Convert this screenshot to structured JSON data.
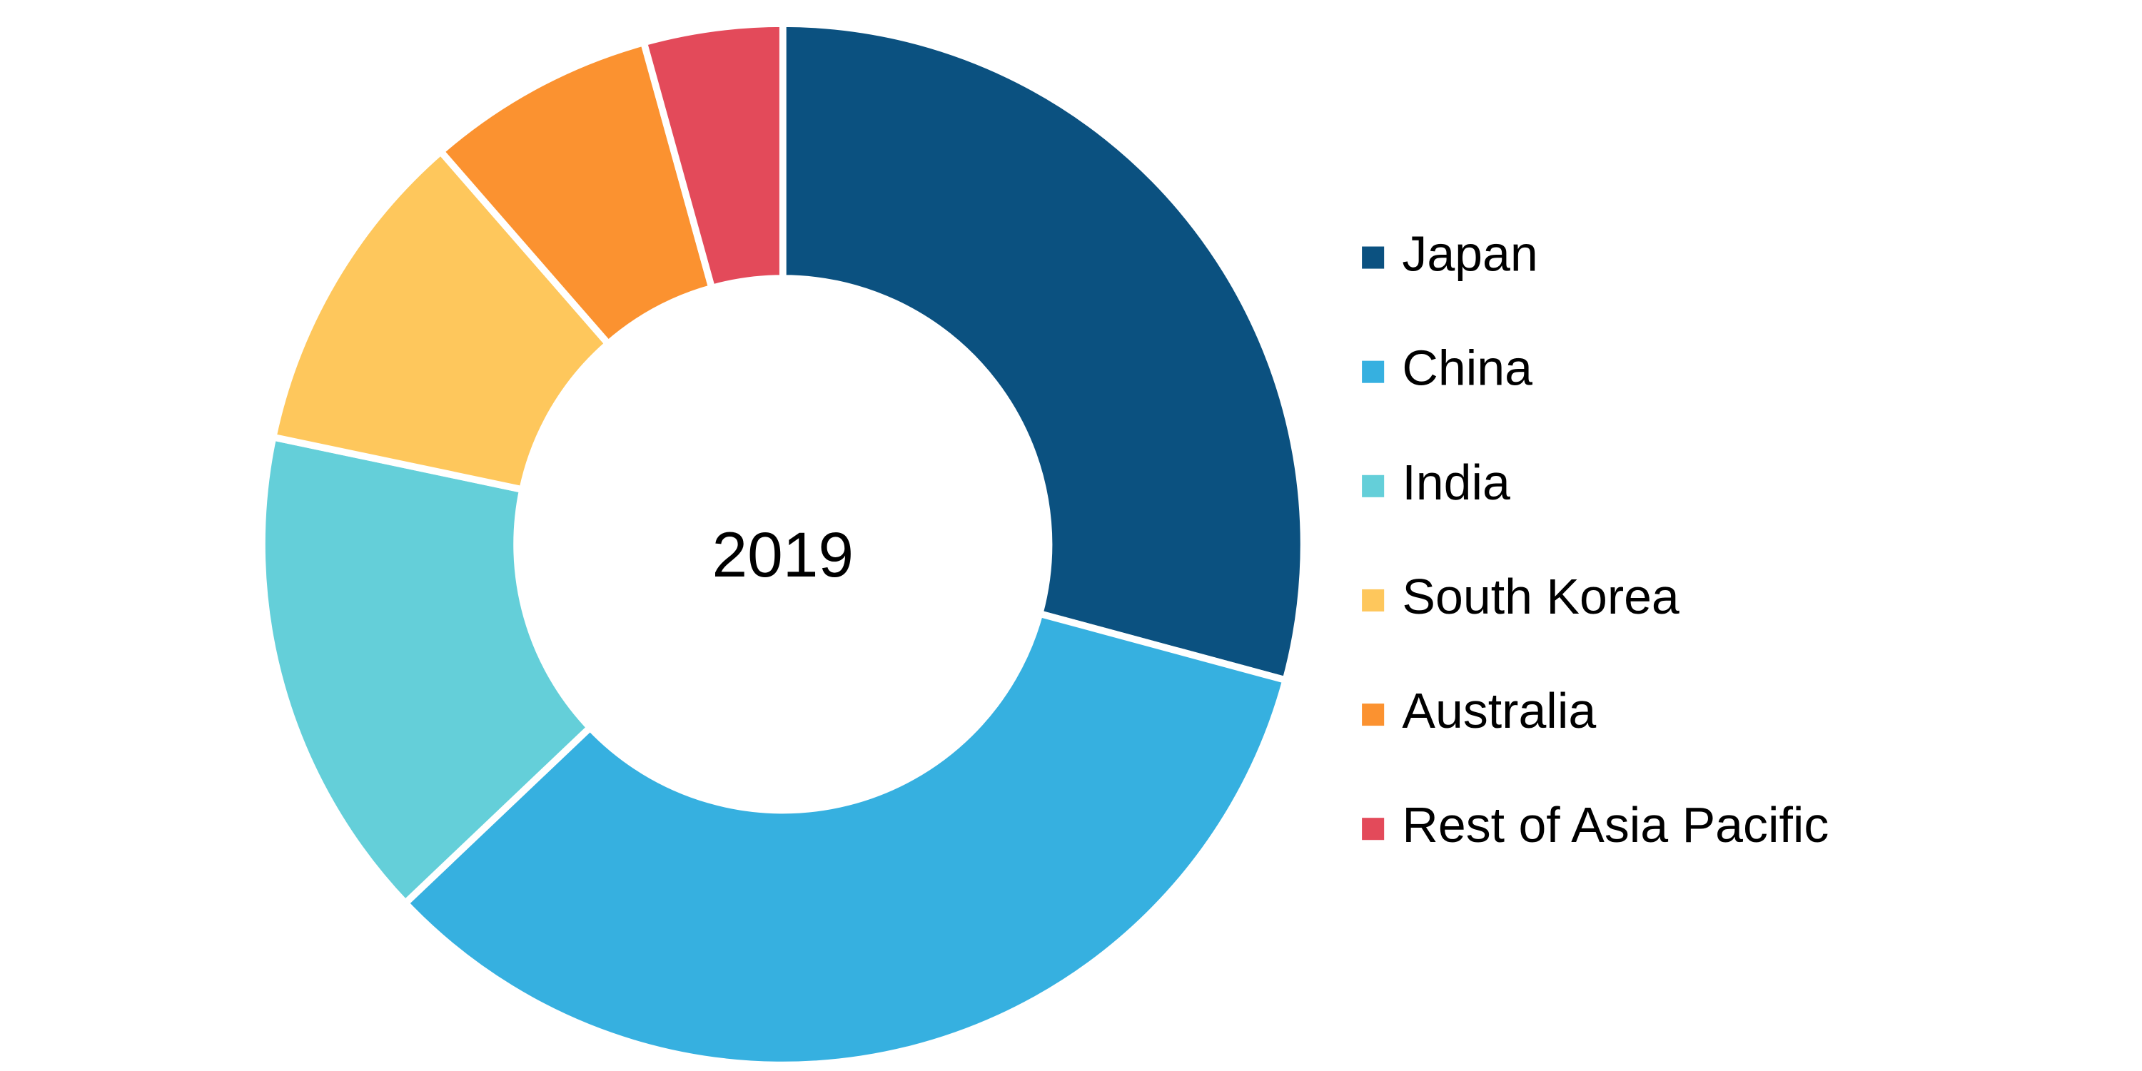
{
  "chart_data": {
    "type": "donut",
    "center_label": "2019",
    "categories": [
      "Japan",
      "China",
      "India",
      "South Korea",
      "Australia",
      "Rest of Asia Pacific"
    ],
    "values": [
      29.2,
      33.7,
      15.4,
      10.3,
      7.1,
      4.3
    ],
    "colors": [
      "#0b5180",
      "#36b0e0",
      "#64cfd9",
      "#fec75c",
      "#fb9230",
      "#e34a5a"
    ],
    "legend": "right"
  }
}
